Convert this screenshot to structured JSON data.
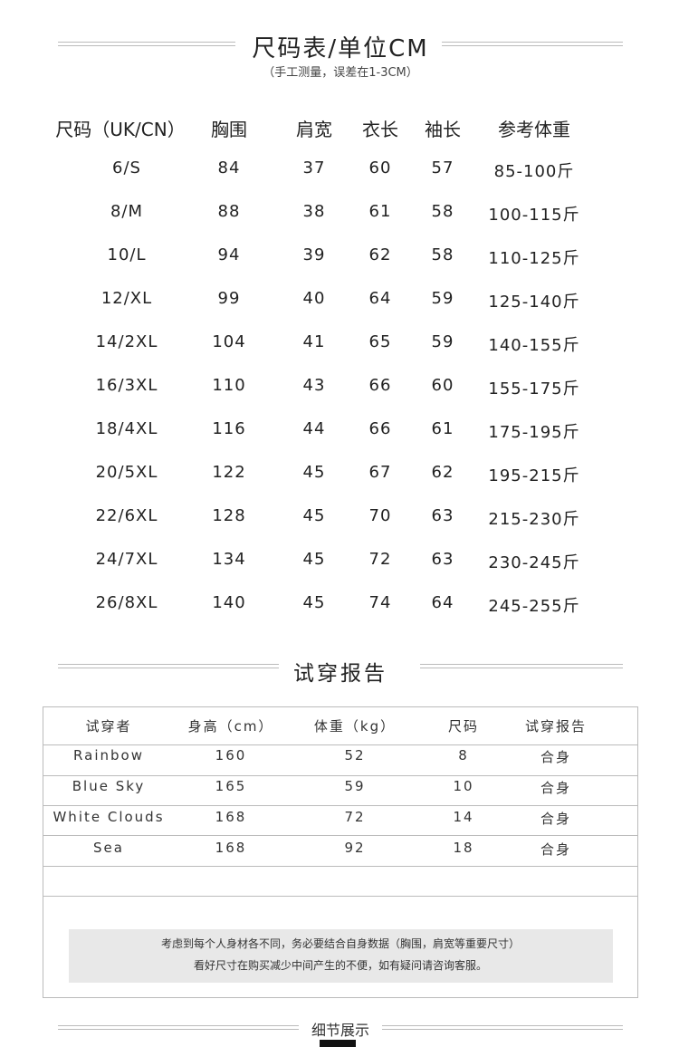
{
  "size_chart": {
    "title": "尺码表/单位CM",
    "subtitle": "（手工测量，误差在1-3CM）",
    "headers": [
      "尺码（UK/CN）",
      "胸围",
      "肩宽",
      "衣长",
      "袖长",
      "参考体重"
    ],
    "rows": [
      [
        "6/S",
        "84",
        "37",
        "60",
        "57",
        "85-100斤"
      ],
      [
        "8/M",
        "88",
        "38",
        "61",
        "58",
        "100-115斤"
      ],
      [
        "10/L",
        "94",
        "39",
        "62",
        "58",
        "110-125斤"
      ],
      [
        "12/XL",
        "99",
        "40",
        "64",
        "59",
        "125-140斤"
      ],
      [
        "14/2XL",
        "104",
        "41",
        "65",
        "59",
        "140-155斤"
      ],
      [
        "16/3XL",
        "110",
        "43",
        "66",
        "60",
        "155-175斤"
      ],
      [
        "18/4XL",
        "116",
        "44",
        "66",
        "61",
        "175-195斤"
      ],
      [
        "20/5XL",
        "122",
        "45",
        "67",
        "62",
        "195-215斤"
      ],
      [
        "22/6XL",
        "128",
        "45",
        "70",
        "63",
        "215-230斤"
      ],
      [
        "24/7XL",
        "134",
        "45",
        "72",
        "63",
        "230-245斤"
      ],
      [
        "26/8XL",
        "140",
        "45",
        "74",
        "64",
        "245-255斤"
      ]
    ]
  },
  "fit_report": {
    "title": "试穿报告",
    "headers": [
      "试穿者",
      "身高（cm）",
      "体重（kg）",
      "尺码",
      "试穿报告"
    ],
    "rows": [
      [
        "Rainbow",
        "160",
        "52",
        "8",
        "合身"
      ],
      [
        "Blue Sky",
        "165",
        "59",
        "10",
        "合身"
      ],
      [
        "White Clouds",
        "168",
        "72",
        "14",
        "合身"
      ],
      [
        "Sea",
        "168",
        "92",
        "18",
        "合身"
      ]
    ],
    "note_line1": "考虑到每个人身材各不同，务必要结合自身数据（胸围，肩宽等重要尺寸）",
    "note_line2": "看好尺寸在购买减少中间产生的不便，如有疑问请咨询客服。"
  },
  "details": {
    "title": "细节展示"
  }
}
